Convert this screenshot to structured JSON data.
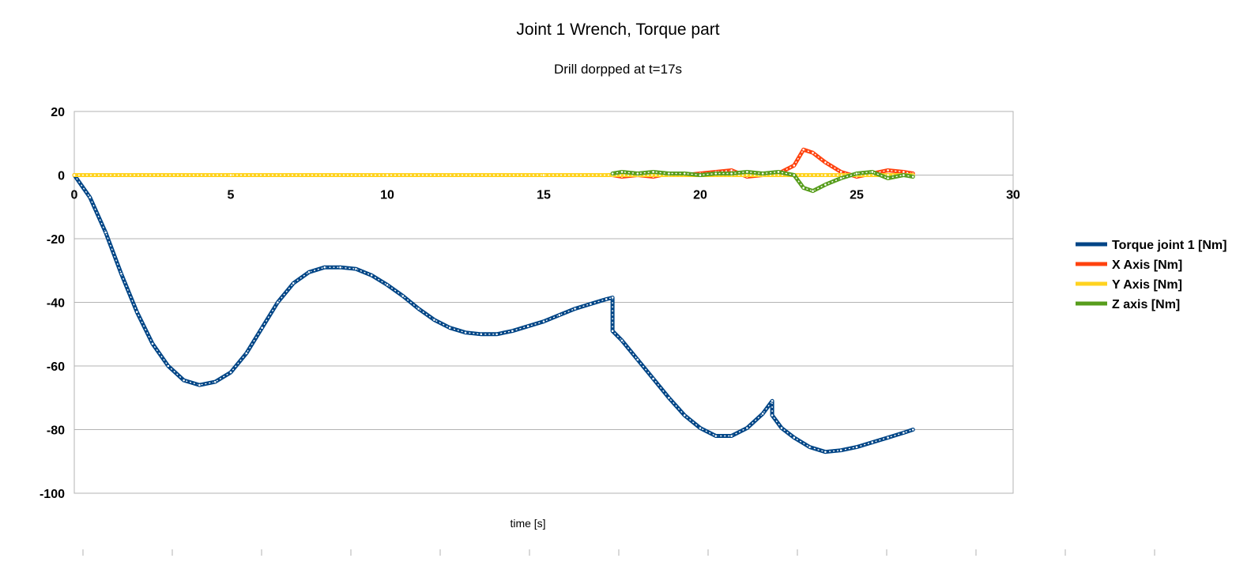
{
  "chart_data": {
    "type": "scatter",
    "title": "Joint 1 Wrench, Torque part",
    "subtitle": "Drill dorpped at t=17s",
    "xlabel": "time [s]",
    "ylabel": "",
    "xlim": [
      0,
      30
    ],
    "ylim": [
      -100,
      20
    ],
    "x_ticks": [
      0,
      5,
      10,
      15,
      20,
      25,
      30
    ],
    "y_ticks": [
      20,
      0,
      -20,
      -40,
      -60,
      -80,
      -100
    ],
    "grid": "horizontal",
    "legend_position": "right",
    "series": [
      {
        "name": "Torque joint 1 [Nm]",
        "color": "#004586",
        "x": [
          0,
          0.5,
          1,
          1.5,
          2,
          2.5,
          3,
          3.5,
          4,
          4.5,
          5,
          5.5,
          6,
          6.5,
          7,
          7.5,
          8,
          8.5,
          9,
          9.5,
          10,
          10.5,
          11,
          11.5,
          12,
          12.5,
          13,
          13.5,
          14,
          14.5,
          15,
          15.5,
          16,
          16.5,
          17.0,
          17.2,
          17.2,
          17.5,
          18,
          18.5,
          19,
          19.5,
          20,
          20.5,
          21,
          21.5,
          22,
          22.3,
          22.3,
          22.6,
          23,
          23.5,
          24,
          24.5,
          25,
          25.5,
          26,
          26.5,
          26.8
        ],
        "y": [
          0,
          -7,
          -18,
          -31,
          -43,
          -53,
          -60,
          -64.5,
          -66,
          -65,
          -62,
          -56,
          -48,
          -40,
          -34,
          -30.5,
          -29,
          -29,
          -29.5,
          -31.5,
          -34.5,
          -38,
          -42,
          -45.5,
          -48,
          -49.5,
          -50,
          -50,
          -49,
          -47.5,
          -46,
          -44,
          -42,
          -40.5,
          -39,
          -38.5,
          -49,
          -52,
          -58,
          -64,
          -70,
          -75.5,
          -79.5,
          -82,
          -82,
          -79.5,
          -75,
          -71,
          -75.5,
          -79.5,
          -82.5,
          -85.5,
          -87,
          -86.5,
          -85.5,
          -84,
          -82.5,
          -81,
          -80
        ]
      },
      {
        "name": "X Axis [Nm]",
        "color": "#ff420e",
        "x": [
          0,
          5,
          10,
          15,
          17.2,
          17.5,
          18,
          18.5,
          19,
          19.5,
          20,
          20.5,
          21,
          21.5,
          22,
          22.5,
          23,
          23.3,
          23.6,
          24,
          24.5,
          25,
          25.5,
          26,
          26.5,
          26.8
        ],
        "y": [
          0,
          0,
          0,
          0,
          0,
          -0.5,
          0,
          -0.5,
          0.5,
          0,
          0.5,
          1,
          1.5,
          -0.5,
          0,
          0.5,
          3,
          8,
          7,
          4,
          1,
          -0.5,
          0.5,
          1.5,
          1,
          0.5
        ]
      },
      {
        "name": "Y Axis [Nm]",
        "color": "#ffd320",
        "x": [
          0,
          5,
          10,
          15,
          17.2,
          18,
          19,
          20,
          21,
          22,
          23,
          24,
          25,
          26,
          26.8
        ],
        "y": [
          0,
          0,
          0,
          0,
          0,
          0,
          0,
          0,
          0,
          0,
          0,
          0,
          0,
          0,
          0
        ]
      },
      {
        "name": "Z axis [Nm]",
        "color": "#579d1c",
        "x": [
          17.2,
          17.5,
          18,
          18.5,
          19,
          19.5,
          20,
          20.5,
          21,
          21.5,
          22,
          22.5,
          23,
          23.3,
          23.6,
          24,
          24.5,
          25,
          25.5,
          26,
          26.5,
          26.8
        ],
        "y": [
          0.5,
          1,
          0.5,
          1,
          0.5,
          0.5,
          0,
          0.5,
          0.5,
          1,
          0.5,
          1,
          0,
          -4,
          -5,
          -3,
          -1,
          0.5,
          1,
          -1,
          0,
          -0.5
        ]
      }
    ]
  }
}
